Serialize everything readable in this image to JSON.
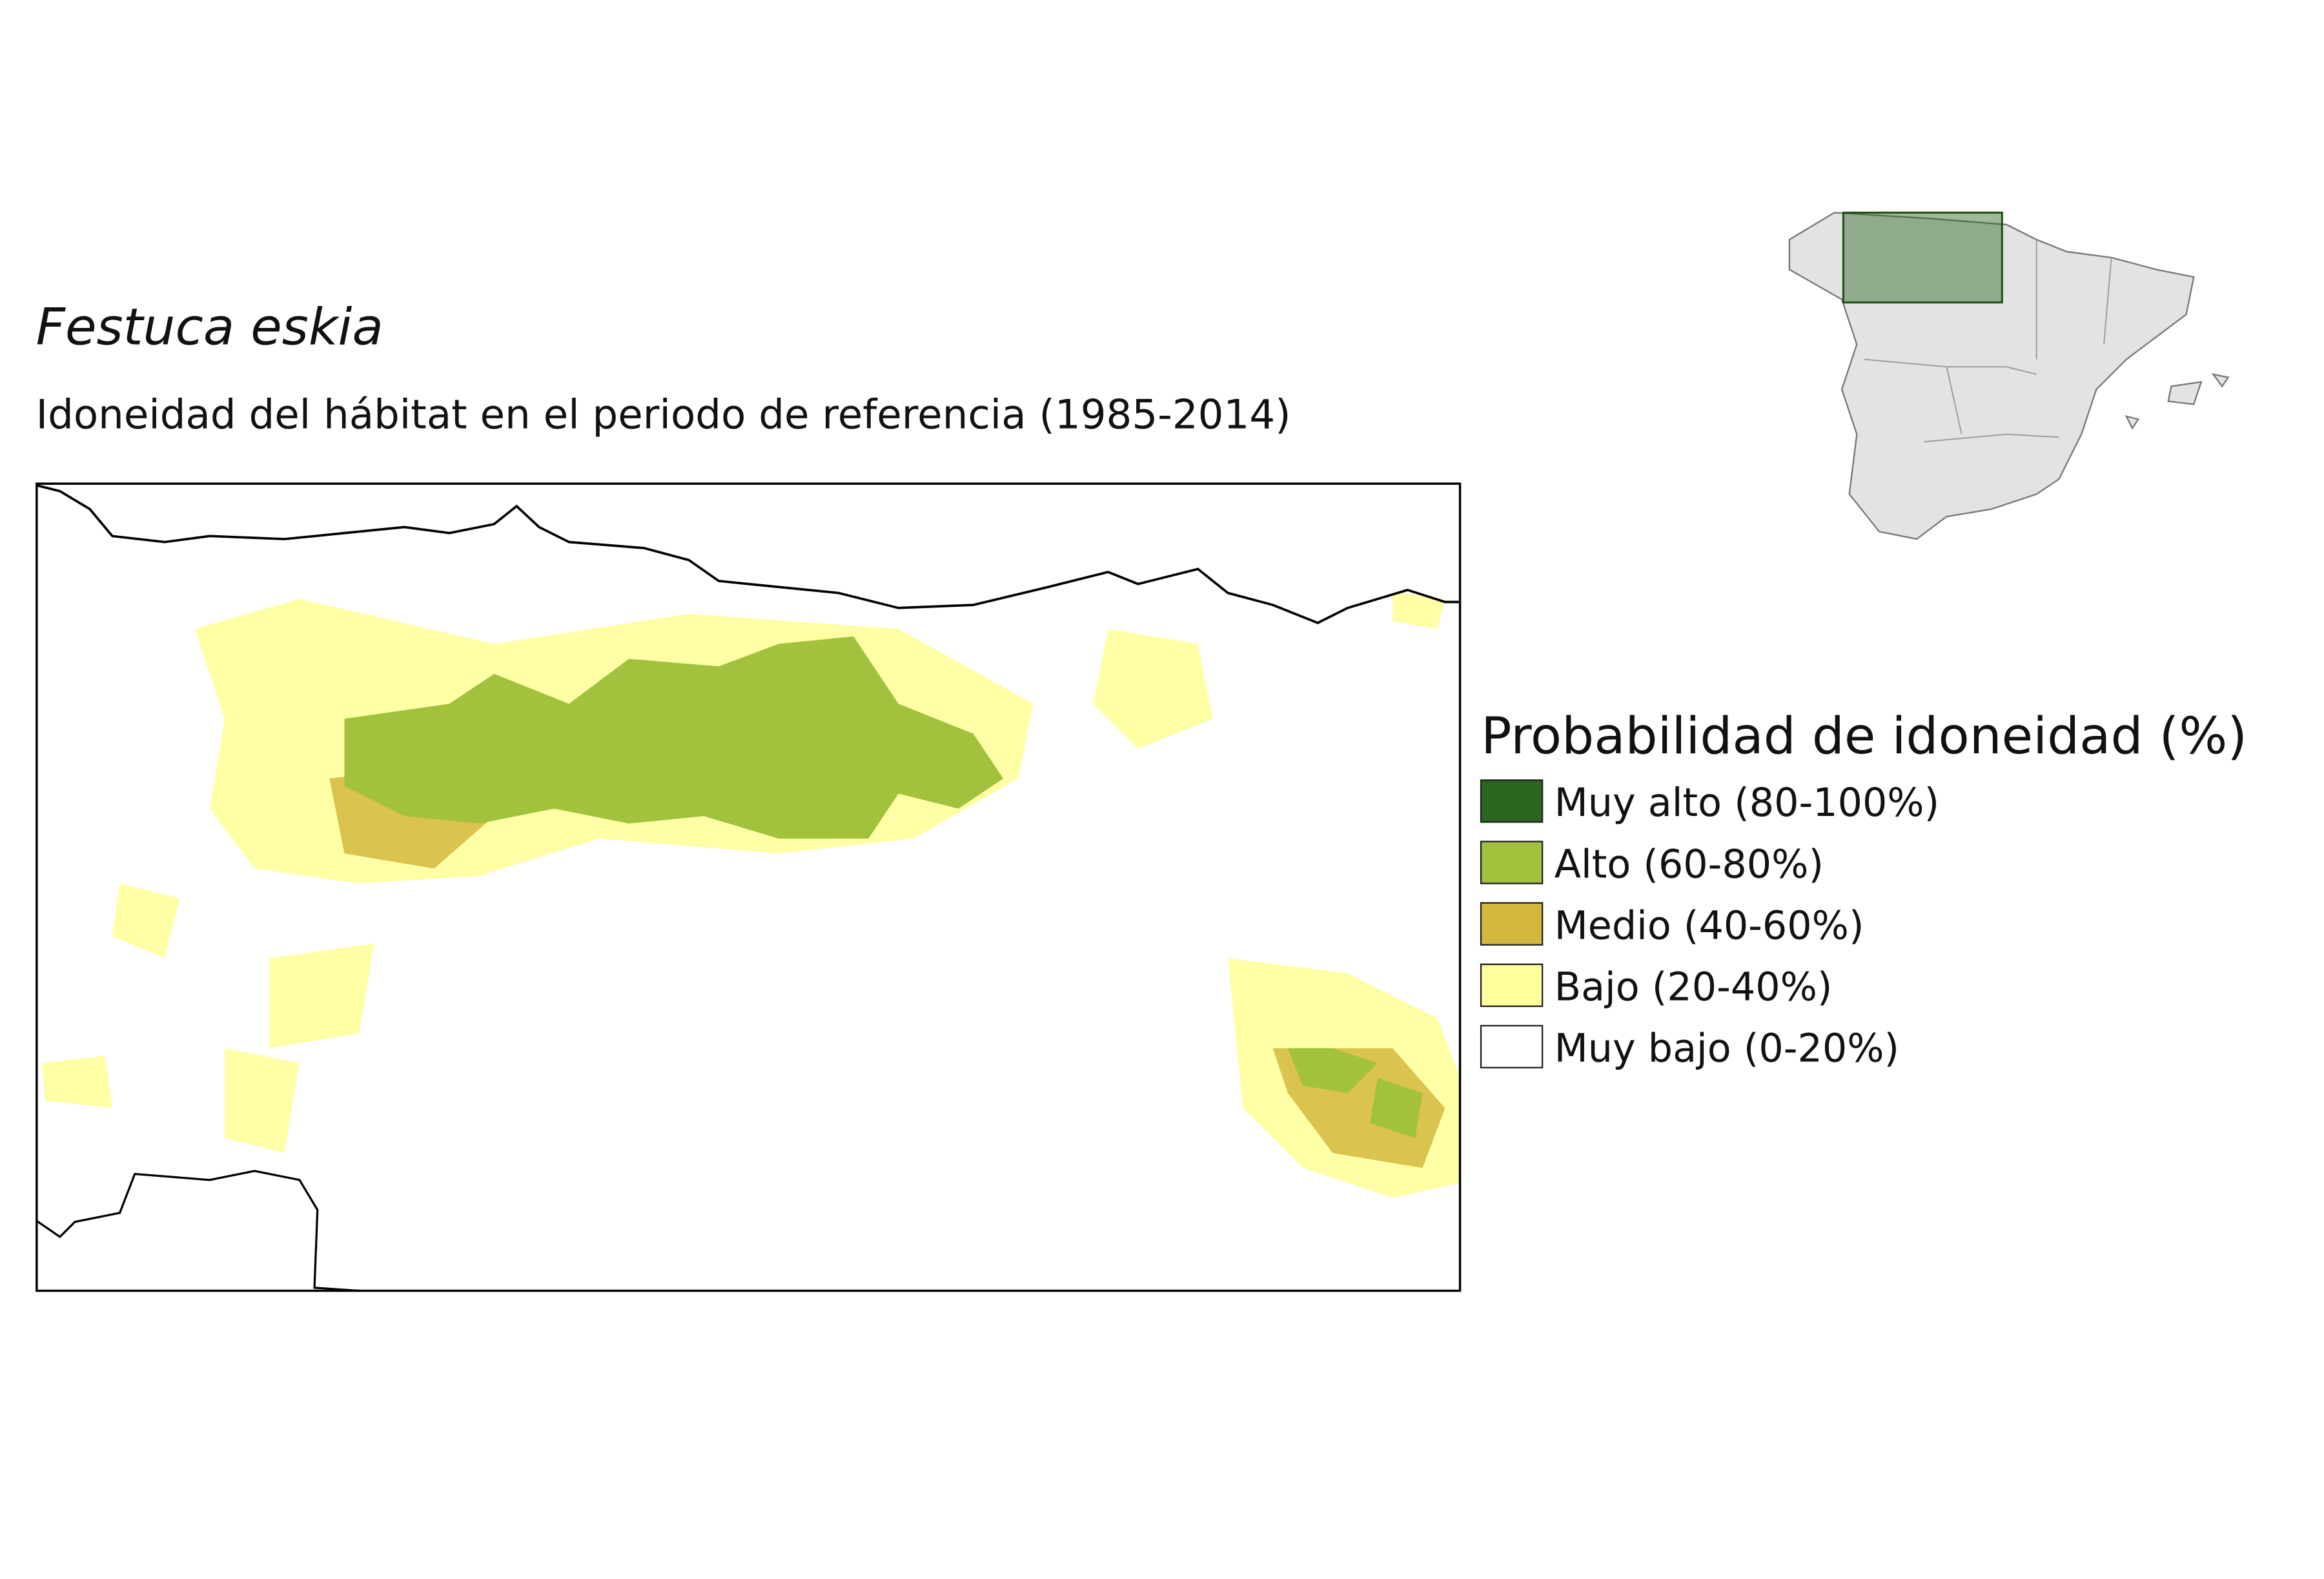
{
  "title": "Festuca eskia",
  "subtitle": "Idoneidad del hábitat en el periodo de referencia (1985-2014)",
  "legend": {
    "title": "Probabilidad de idoneidad (%)",
    "items": [
      {
        "label": "Muy alto (80-100%)",
        "color": "#2b6520"
      },
      {
        "label": "Alto (60-80%)",
        "color": "#a2c13d"
      },
      {
        "label": "Medio (40-60%)",
        "color": "#d4b83e"
      },
      {
        "label": "Bajo (20-40%)",
        "color": "#ffff9c"
      },
      {
        "label": "Muy bajo (0-20%)",
        "color": "#ffffff"
      }
    ]
  }
}
